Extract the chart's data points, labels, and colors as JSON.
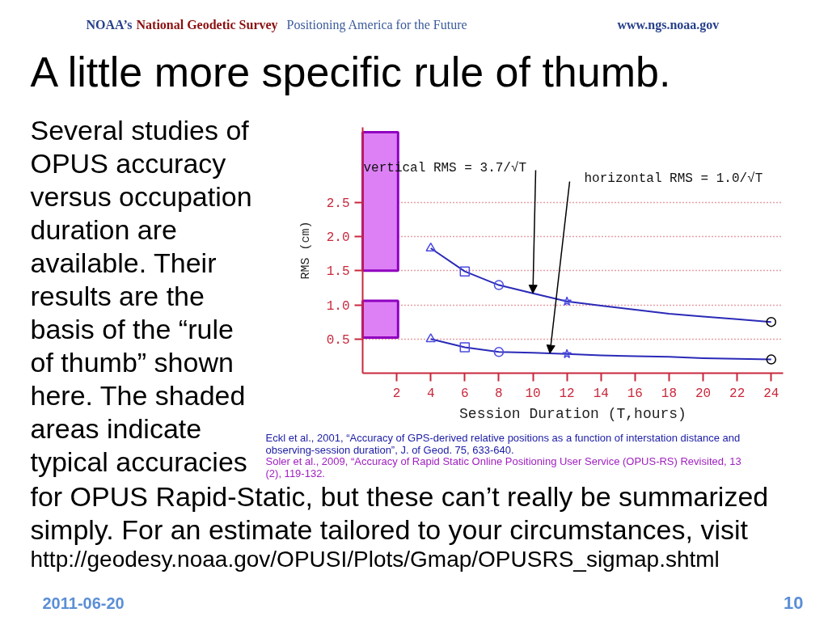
{
  "chart_data": {
    "type": "line",
    "title": "A little more specific rule of thumb.",
    "xlabel": "Session Duration (T,hours)",
    "ylabel": "RMS (cm)",
    "xlim": [
      0,
      24.7
    ],
    "xticks": [
      2,
      4,
      6,
      8,
      10,
      12,
      14,
      16,
      18,
      20,
      22,
      24
    ],
    "ylim": [
      0,
      3.6
    ],
    "yticks": [
      0.5,
      {
        "value": 1,
        "label": "1.0"
      },
      1.5,
      {
        "value": 2,
        "label": "2.0"
      },
      2.5
    ],
    "grid": "y",
    "line_style": "solid",
    "series": [
      {
        "type": "bar",
        "x": [
          1.04,
          1.04
        ],
        "base": [
          1.5,
          0.52
        ],
        "values": [
          2.03,
          0.54
        ],
        "color": "#dd80f5"
      },
      {
        "x": [
          4,
          6,
          8,
          10,
          12,
          14,
          16,
          18,
          20,
          22,
          24
        ],
        "values": [
          1.83,
          1.49,
          1.29,
          1.17,
          1.05,
          0.99,
          0.93,
          0.87,
          0.83,
          0.79,
          0.75
        ],
        "color": "#2a2ab8",
        "marker": "none"
      },
      {
        "x": [
          4,
          6,
          8,
          10,
          12,
          14,
          16,
          18,
          20,
          22,
          24
        ],
        "values": [
          0.5,
          0.38,
          0.31,
          0.3,
          0.28,
          0.26,
          0.25,
          0.24,
          0.22,
          0.21,
          0.2
        ],
        "color": "#2a2ab8",
        "marker": "none"
      },
      {
        "type": "scatter",
        "x": [
          4,
          4
        ],
        "values": [
          1.83,
          0.5
        ],
        "color": "#4a4ae0",
        "marker": "triangle"
      },
      {
        "type": "scatter",
        "x": [
          6,
          6
        ],
        "values": [
          1.49,
          0.38
        ],
        "color": "#4a4ae0",
        "marker": "square"
      },
      {
        "type": "scatter",
        "x": [
          8,
          8
        ],
        "values": [
          1.29,
          0.31
        ],
        "color": "#4a4ae0",
        "marker": "circle"
      },
      {
        "type": "scatter",
        "x": [
          12,
          12
        ],
        "values": [
          1.05,
          0.28
        ],
        "color": "#4a4ae0",
        "marker": "star"
      },
      {
        "type": "scatter",
        "x": [
          24,
          24
        ],
        "values": [
          0.75,
          0.2
        ],
        "color": "#000000",
        "marker": "circle"
      }
    ],
    "annotations": [
      "NOAA’s",
      "National Geodetic Survey",
      "Positioning America for the Future",
      "www.ngs.noaa.gov",
      {
        "text": "vertical RMS = 3.7/√T",
        "x": 10,
        "y": 1.17
      },
      {
        "text": "horizontal RMS = 1.0/√T",
        "x": 11,
        "y": 0.29
      },
      "Several studies of OPUS accuracy versus occupation duration are available. Their results are the basis of the “rule of thumb” shown here. The shaded areas indicate typical accuracies",
      "for OPUS Rapid-Static, but these can’t really be summarized simply. For an estimate tailored to your circumstances, visit",
      "http://geodesy.noaa.gov/OPUSI/Plots/Gmap/OPUSRS_sigmap.shtml",
      "Eckl et al., 2001, “Accuracy of GPS-derived relative positions as a function of interstation distance and observing-session duration”, J. of Geod. 75, 633-640.",
      "Soler et al., 2009, “Accuracy of Rapid Static Online Positioning User Service (OPUS-RS) Revisited, 13 (2), 119-132.",
      "2011-06-20",
      "10"
    ]
  }
}
